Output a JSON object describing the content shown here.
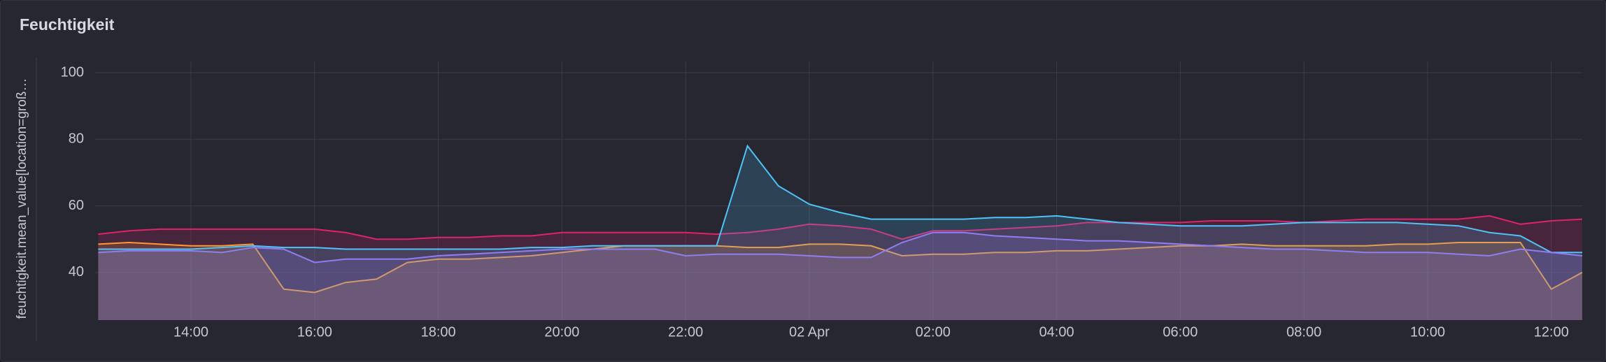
{
  "chart_data": {
    "type": "line",
    "title": "Feuchtigkeit",
    "y_label": "feuchtigkeit.mean_value[location=groß…",
    "x": [
      12.5,
      13,
      13.5,
      14,
      14.5,
      15,
      15.5,
      16,
      16.5,
      17,
      17.5,
      18,
      18.5,
      19,
      19.5,
      20,
      20.5,
      21,
      21.5,
      22,
      22.5,
      23,
      23.5,
      24,
      24.5,
      25,
      25.5,
      26,
      26.5,
      27,
      27.5,
      28,
      28.5,
      29,
      29.5,
      30,
      30.5,
      31,
      31.5,
      32,
      32.5,
      33,
      33.5,
      34,
      34.5,
      35,
      35.5,
      36,
      36.5
    ],
    "series": [
      {
        "color": "#e0226e",
        "values": [
          51.5,
          52.5,
          53,
          53,
          53,
          53,
          53,
          53,
          52,
          50,
          50,
          50.5,
          50.5,
          51,
          51,
          52,
          52,
          52,
          52,
          52,
          51.5,
          52,
          53,
          54.5,
          54,
          53,
          50,
          52.5,
          52.5,
          53,
          53.5,
          54,
          55,
          55,
          55,
          55,
          55.5,
          55.5,
          55.5,
          55,
          55.5,
          56,
          56,
          56,
          56,
          57,
          54.5,
          55.5,
          56
        ]
      },
      {
        "color": "#ff9830",
        "values": [
          48.5,
          49,
          48.5,
          48,
          48,
          48.5,
          35,
          34,
          37,
          38,
          43,
          44,
          44,
          44.5,
          45,
          46,
          47,
          48,
          48,
          48,
          48,
          47.5,
          47.5,
          48.5,
          48.5,
          48,
          45,
          45.5,
          45.5,
          46,
          46,
          46.5,
          46.5,
          47,
          47.5,
          48,
          48,
          48.5,
          48,
          48,
          48,
          48,
          48.5,
          48.5,
          49,
          49,
          49,
          35,
          40
        ]
      },
      {
        "color": "#4fc3f7",
        "values": [
          47,
          47,
          47,
          47,
          47.5,
          48,
          47.5,
          47.5,
          47,
          47,
          47,
          47,
          47,
          47,
          47.5,
          47.5,
          48,
          48,
          48,
          48,
          48,
          78,
          66,
          60.5,
          58,
          56,
          56,
          56,
          56,
          56.5,
          56.5,
          57,
          56,
          55,
          54.5,
          54,
          54,
          54,
          54.5,
          55,
          55,
          55,
          55,
          54.5,
          54,
          52,
          51,
          46,
          46
        ]
      },
      {
        "color": "#8f7ef2",
        "values": [
          46,
          46.5,
          46.5,
          46.5,
          46,
          47.5,
          47,
          43,
          44,
          44,
          44,
          45,
          45.5,
          46,
          46.5,
          47,
          47,
          47,
          47,
          45,
          45.5,
          45.5,
          45.5,
          45,
          44.5,
          44.5,
          49,
          52,
          52,
          51,
          50.5,
          50,
          49.5,
          49.5,
          49,
          48.5,
          48,
          47.5,
          47,
          47,
          46.5,
          46,
          46,
          46,
          45.5,
          45,
          47,
          46,
          45
        ]
      }
    ],
    "xlim": [
      12.45,
      36.5
    ],
    "xticks": [
      {
        "value": 14,
        "label": "14:00"
      },
      {
        "value": 16,
        "label": "16:00"
      },
      {
        "value": 18,
        "label": "18:00"
      },
      {
        "value": 20,
        "label": "20:00"
      },
      {
        "value": 22,
        "label": "22:00"
      },
      {
        "value": 24,
        "label": "02 Apr"
      },
      {
        "value": 26,
        "label": "02:00"
      },
      {
        "value": 28,
        "label": "04:00"
      },
      {
        "value": 30,
        "label": "06:00"
      },
      {
        "value": 32,
        "label": "08:00"
      },
      {
        "value": 34,
        "label": "10:00"
      },
      {
        "value": 36,
        "label": "12:00"
      }
    ],
    "ylim": [
      25.7,
      100
    ],
    "yticks": [
      40,
      60,
      80,
      100
    ],
    "grid": true
  }
}
